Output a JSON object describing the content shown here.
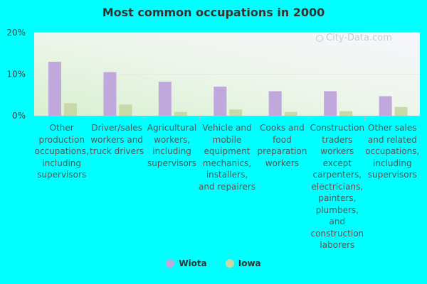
{
  "chart_data": {
    "type": "bar",
    "title": "Most common occupations in 2000",
    "categories": [
      "Other production occupations, including supervisors",
      "Driver/sales workers and truck drivers",
      "Agricultural workers, including supervisors",
      "Vehicle and mobile equipment mechanics, installers, and repairers",
      "Cooks and food preparation workers",
      "Construction traders workers except carpenters, electricians, painters, plumbers, and construction laborers",
      "Other sales and related occupations, including supervisors"
    ],
    "series": [
      {
        "name": "Wiota",
        "color": "#c0a8dc",
        "values": [
          13.0,
          10.5,
          8.2,
          7.0,
          5.9,
          5.9,
          4.7
        ]
      },
      {
        "name": "Iowa",
        "color": "#c8d8a8",
        "values": [
          3.0,
          2.7,
          0.9,
          1.5,
          0.9,
          1.1,
          2.1
        ]
      }
    ],
    "yticks": [
      "20%",
      "10%",
      "0%"
    ],
    "ytick_values": [
      20,
      10,
      0
    ],
    "ylim": [
      0,
      20
    ],
    "xlabel": "",
    "ylabel": "",
    "grid": true,
    "legend_position": "bottom-center"
  },
  "watermark": "City-Data.com"
}
